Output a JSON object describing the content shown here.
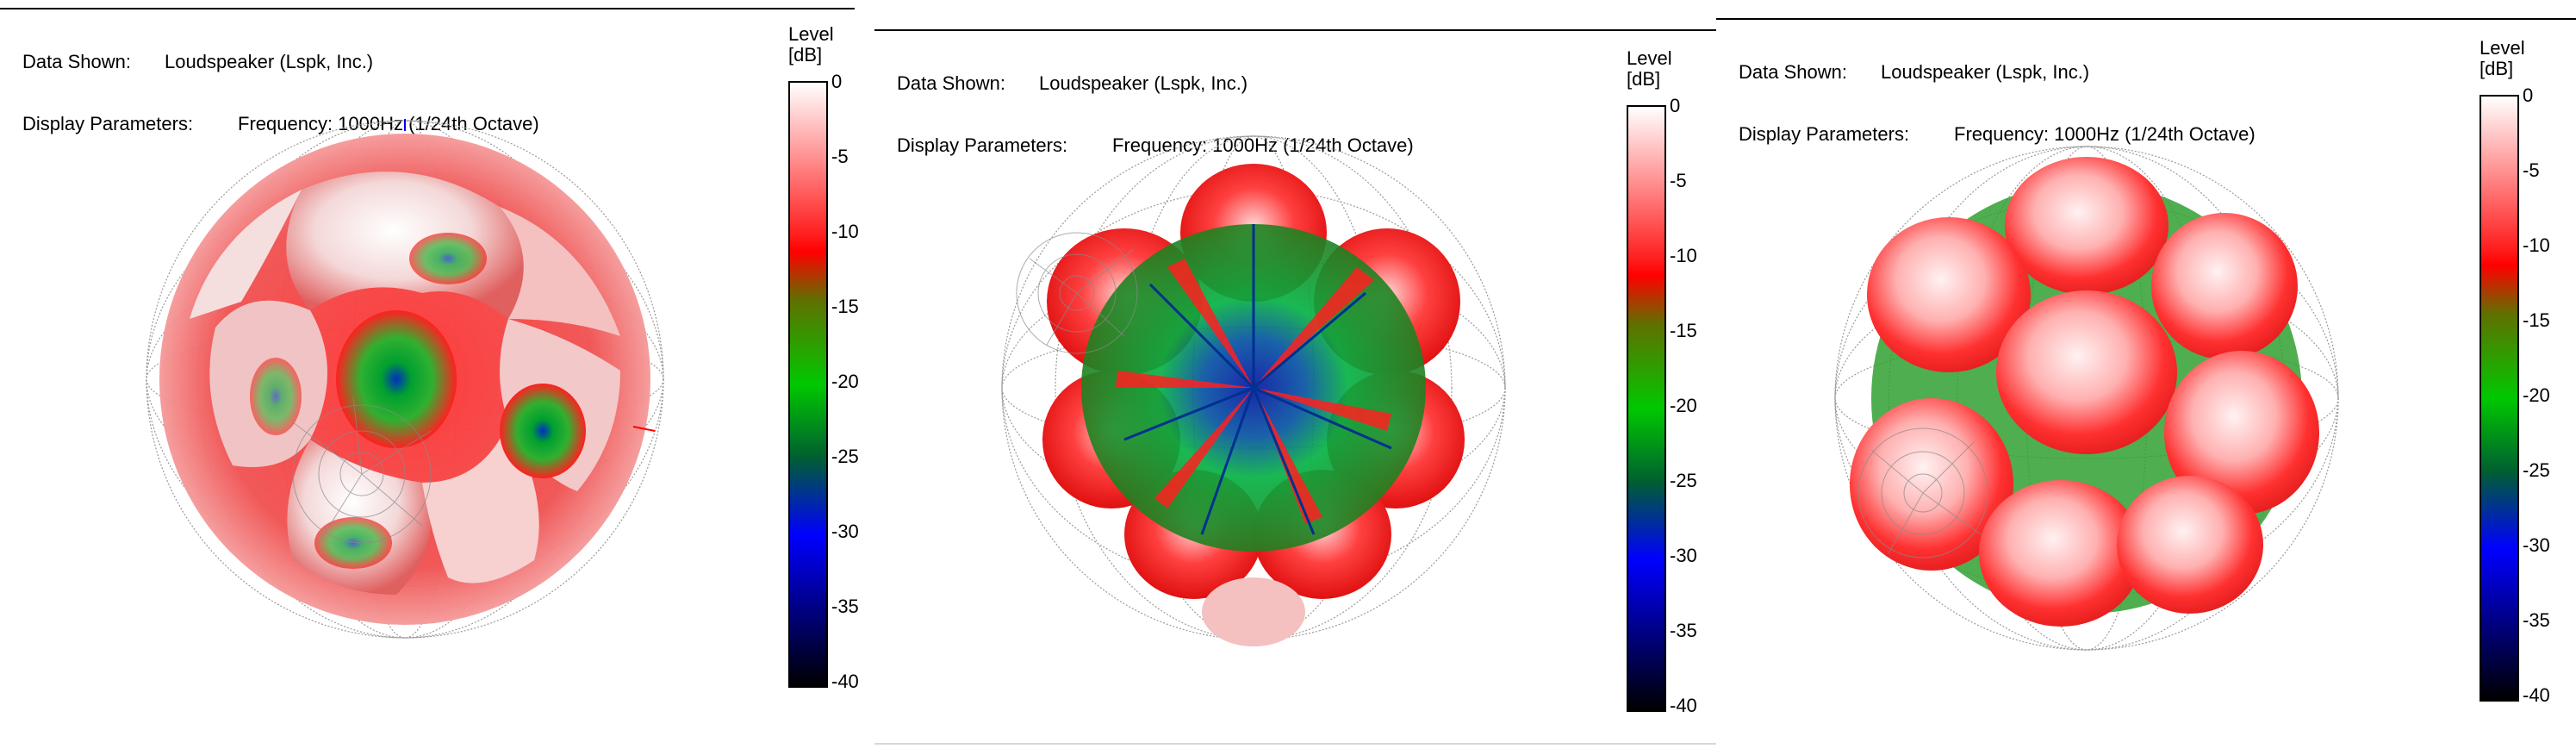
{
  "panels": [
    {
      "data_shown_label": "Data Shown:",
      "data_shown_value": "Loudspeaker (Lspk, Inc.)",
      "display_params_label": "Display Parameters:",
      "display_params_value": "Frequency: 1000Hz (1/24th Octave)",
      "legend_title": "Level",
      "legend_unit": "[dB]",
      "legend_ticks": [
        "0",
        "-5",
        "-10",
        "-15",
        "-20",
        "-25",
        "-30",
        "-35",
        "-40"
      ]
    },
    {
      "data_shown_label": "Data Shown:",
      "data_shown_value": "Loudspeaker (Lspk, Inc.)",
      "display_params_label": "Display Parameters:",
      "display_params_value": "Frequency: 1000Hz (1/24th Octave)",
      "legend_title": "Level",
      "legend_unit": "[dB]",
      "legend_ticks": [
        "0",
        "-5",
        "-10",
        "-15",
        "-20",
        "-25",
        "-30",
        "-35",
        "-40"
      ]
    },
    {
      "data_shown_label": "Data Shown:",
      "data_shown_value": "Loudspeaker (Lspk, Inc.)",
      "display_params_label": "Display Parameters:",
      "display_params_value": "Frequency: 1000Hz (1/24th Octave)",
      "legend_title": "Level",
      "legend_unit": "[dB]",
      "legend_ticks": [
        "0",
        "-5",
        "-10",
        "-15",
        "-20",
        "-25",
        "-30",
        "-35",
        "-40"
      ]
    }
  ],
  "colors": {
    "scale_top": "#ffffff",
    "scale_red": "#ff0000",
    "scale_green": "#00c800",
    "scale_blue": "#0000ff",
    "scale_bottom": "#000000",
    "grid": "#9a9a9a"
  }
}
